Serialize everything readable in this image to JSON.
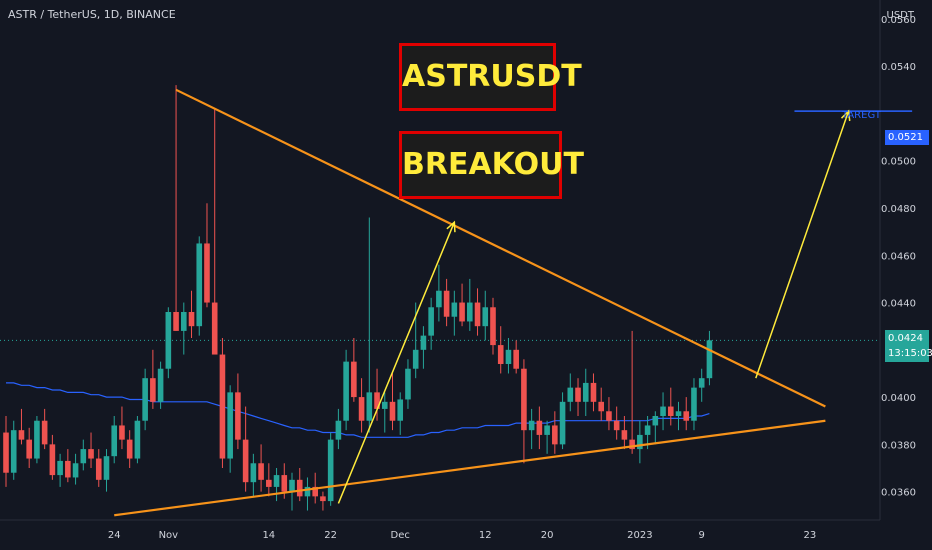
{
  "header": {
    "symbol": "ASTR / TetherUS, 1D, BINANCE"
  },
  "banners": {
    "line1": "ASTRUSDT",
    "line2": "BREAKOUT"
  },
  "axis": {
    "unit": "USDT",
    "price_ticks": [
      "0.0560",
      "0.0540",
      "0.0500",
      "0.0480",
      "0.0460",
      "0.0440",
      "0.0400",
      "0.0380",
      "0.0360"
    ],
    "time_ticks": [
      "24",
      "Nov",
      "14",
      "22",
      "Dec",
      "12",
      "20",
      "2023",
      "9",
      "23"
    ]
  },
  "target": {
    "label": "TAREGT",
    "price": "0.0521"
  },
  "current": {
    "price": "0.0424",
    "countdown": "13:15:03"
  },
  "colors": {
    "up": "#26a69a",
    "down": "#ef5350",
    "trendline": "#f7931a",
    "arrow": "#ffeb3b",
    "ma": "#2962ff",
    "bg": "#131722"
  },
  "chart_data": {
    "type": "candlestick",
    "ylim": [
      0.0348,
      0.0568
    ],
    "x_ticks": [
      {
        "label": "24",
        "index": 14
      },
      {
        "label": "Nov",
        "index": 21
      },
      {
        "label": "14",
        "index": 34
      },
      {
        "label": "22",
        "index": 42
      },
      {
        "label": "Dec",
        "index": 51
      },
      {
        "label": "12",
        "index": 62
      },
      {
        "label": "20",
        "index": 70
      },
      {
        "label": "2023",
        "index": 82
      },
      {
        "label": "9",
        "index": 90
      },
      {
        "label": "23",
        "index": 104
      }
    ],
    "candles": [
      [
        0.0385,
        0.0392,
        0.0362,
        0.0368
      ],
      [
        0.0368,
        0.039,
        0.0365,
        0.0386
      ],
      [
        0.0386,
        0.0395,
        0.038,
        0.0382
      ],
      [
        0.0382,
        0.0387,
        0.037,
        0.0374
      ],
      [
        0.0374,
        0.0392,
        0.0372,
        0.039
      ],
      [
        0.039,
        0.0395,
        0.0378,
        0.038
      ],
      [
        0.038,
        0.0384,
        0.0365,
        0.0367
      ],
      [
        0.0367,
        0.0376,
        0.0362,
        0.0373
      ],
      [
        0.0373,
        0.0378,
        0.0364,
        0.0366
      ],
      [
        0.0366,
        0.0376,
        0.0363,
        0.0372
      ],
      [
        0.0372,
        0.0382,
        0.0369,
        0.0378
      ],
      [
        0.0378,
        0.0385,
        0.037,
        0.0374
      ],
      [
        0.0374,
        0.0378,
        0.0362,
        0.0365
      ],
      [
        0.0365,
        0.0378,
        0.036,
        0.0375
      ],
      [
        0.0375,
        0.0392,
        0.0372,
        0.0388
      ],
      [
        0.0388,
        0.0396,
        0.0378,
        0.0382
      ],
      [
        0.0382,
        0.0386,
        0.037,
        0.0374
      ],
      [
        0.0374,
        0.0392,
        0.0372,
        0.039
      ],
      [
        0.039,
        0.0412,
        0.0386,
        0.0408
      ],
      [
        0.0408,
        0.042,
        0.0395,
        0.0398
      ],
      [
        0.0398,
        0.0415,
        0.0395,
        0.0412
      ],
      [
        0.0412,
        0.0438,
        0.0408,
        0.0436
      ],
      [
        0.0436,
        0.0532,
        0.0428,
        0.0428
      ],
      [
        0.0428,
        0.044,
        0.0418,
        0.0436
      ],
      [
        0.0436,
        0.0445,
        0.0425,
        0.043
      ],
      [
        0.043,
        0.0468,
        0.0426,
        0.0465
      ],
      [
        0.0465,
        0.0482,
        0.0438,
        0.044
      ],
      [
        0.044,
        0.0522,
        0.0418,
        0.0418
      ],
      [
        0.0418,
        0.0425,
        0.037,
        0.0374
      ],
      [
        0.0374,
        0.0405,
        0.0368,
        0.0402
      ],
      [
        0.0402,
        0.041,
        0.0378,
        0.0382
      ],
      [
        0.0382,
        0.0396,
        0.036,
        0.0364
      ],
      [
        0.0364,
        0.0376,
        0.0358,
        0.0372
      ],
      [
        0.0372,
        0.038,
        0.036,
        0.0365
      ],
      [
        0.0365,
        0.0372,
        0.0358,
        0.0362
      ],
      [
        0.0362,
        0.037,
        0.0356,
        0.0367
      ],
      [
        0.0367,
        0.0372,
        0.0357,
        0.036
      ],
      [
        0.036,
        0.0368,
        0.0352,
        0.0365
      ],
      [
        0.0365,
        0.037,
        0.0356,
        0.0358
      ],
      [
        0.0358,
        0.0366,
        0.0352,
        0.0362
      ],
      [
        0.0362,
        0.0368,
        0.0355,
        0.0358
      ],
      [
        0.0358,
        0.036,
        0.0352,
        0.0356
      ],
      [
        0.0356,
        0.0385,
        0.0354,
        0.0382
      ],
      [
        0.0382,
        0.0395,
        0.0378,
        0.039
      ],
      [
        0.039,
        0.042,
        0.0386,
        0.0415
      ],
      [
        0.0415,
        0.0425,
        0.0398,
        0.04
      ],
      [
        0.04,
        0.0408,
        0.0385,
        0.039
      ],
      [
        0.039,
        0.0476,
        0.0385,
        0.0402
      ],
      [
        0.0402,
        0.0412,
        0.039,
        0.0395
      ],
      [
        0.0395,
        0.0402,
        0.0385,
        0.0398
      ],
      [
        0.0398,
        0.041,
        0.0386,
        0.039
      ],
      [
        0.039,
        0.0402,
        0.0384,
        0.0399
      ],
      [
        0.0399,
        0.0416,
        0.0395,
        0.0412
      ],
      [
        0.0412,
        0.044,
        0.0408,
        0.042
      ],
      [
        0.042,
        0.043,
        0.0412,
        0.0426
      ],
      [
        0.0426,
        0.0442,
        0.042,
        0.0438
      ],
      [
        0.0438,
        0.0456,
        0.0432,
        0.0445
      ],
      [
        0.0445,
        0.045,
        0.043,
        0.0434
      ],
      [
        0.0434,
        0.0445,
        0.0426,
        0.044
      ],
      [
        0.044,
        0.0448,
        0.043,
        0.0432
      ],
      [
        0.0432,
        0.045,
        0.0428,
        0.044
      ],
      [
        0.044,
        0.0446,
        0.0426,
        0.043
      ],
      [
        0.043,
        0.0445,
        0.0424,
        0.0438
      ],
      [
        0.0438,
        0.0442,
        0.0418,
        0.0422
      ],
      [
        0.0422,
        0.043,
        0.041,
        0.0414
      ],
      [
        0.0414,
        0.0425,
        0.041,
        0.042
      ],
      [
        0.042,
        0.0424,
        0.041,
        0.0412
      ],
      [
        0.0412,
        0.0416,
        0.0372,
        0.0386
      ],
      [
        0.0386,
        0.0395,
        0.0378,
        0.039
      ],
      [
        0.039,
        0.0396,
        0.0378,
        0.0384
      ],
      [
        0.0384,
        0.039,
        0.0376,
        0.0388
      ],
      [
        0.0388,
        0.0394,
        0.0376,
        0.038
      ],
      [
        0.038,
        0.0402,
        0.0378,
        0.0398
      ],
      [
        0.0398,
        0.041,
        0.0394,
        0.0404
      ],
      [
        0.0404,
        0.0408,
        0.0392,
        0.0398
      ],
      [
        0.0398,
        0.0412,
        0.0392,
        0.0406
      ],
      [
        0.0406,
        0.041,
        0.0394,
        0.0398
      ],
      [
        0.0398,
        0.0404,
        0.039,
        0.0394
      ],
      [
        0.0394,
        0.04,
        0.0386,
        0.039
      ],
      [
        0.039,
        0.0396,
        0.0382,
        0.0386
      ],
      [
        0.0386,
        0.0392,
        0.0378,
        0.0382
      ],
      [
        0.0382,
        0.0428,
        0.0376,
        0.0378
      ],
      [
        0.0378,
        0.039,
        0.0372,
        0.0384
      ],
      [
        0.0384,
        0.0392,
        0.0378,
        0.0388
      ],
      [
        0.0388,
        0.0394,
        0.038,
        0.0392
      ],
      [
        0.0392,
        0.0402,
        0.0386,
        0.0396
      ],
      [
        0.0396,
        0.0404,
        0.0388,
        0.0392
      ],
      [
        0.0392,
        0.0398,
        0.0386,
        0.0394
      ],
      [
        0.0394,
        0.04,
        0.0386,
        0.039
      ],
      [
        0.039,
        0.0408,
        0.0386,
        0.0404
      ],
      [
        0.0404,
        0.0412,
        0.0398,
        0.0408
      ],
      [
        0.0408,
        0.0428,
        0.0405,
        0.0424
      ]
    ],
    "moving_average": {
      "start_index": 0,
      "values": [
        0.0406,
        0.0406,
        0.0405,
        0.0405,
        0.0404,
        0.0404,
        0.0403,
        0.0403,
        0.0402,
        0.0402,
        0.0402,
        0.0401,
        0.0401,
        0.04,
        0.04,
        0.04,
        0.0399,
        0.0399,
        0.0399,
        0.0398,
        0.0398,
        0.0398,
        0.0398,
        0.0398,
        0.0398,
        0.0398,
        0.0398,
        0.0397,
        0.0396,
        0.0395,
        0.0394,
        0.0393,
        0.0392,
        0.0391,
        0.039,
        0.0389,
        0.0388,
        0.0387,
        0.0387,
        0.0386,
        0.0386,
        0.0385,
        0.0385,
        0.0385,
        0.0384,
        0.0384,
        0.0383,
        0.0383,
        0.0383,
        0.0383,
        0.0383,
        0.0383,
        0.0383,
        0.0384,
        0.0384,
        0.0385,
        0.0385,
        0.0386,
        0.0386,
        0.0387,
        0.0387,
        0.0387,
        0.0388,
        0.0388,
        0.0388,
        0.0388,
        0.0389,
        0.0389,
        0.0389,
        0.0389,
        0.0389,
        0.039,
        0.039,
        0.039,
        0.039,
        0.039,
        0.039,
        0.039,
        0.039,
        0.039,
        0.039,
        0.039,
        0.039,
        0.039,
        0.0391,
        0.0391,
        0.0391,
        0.0391,
        0.0391,
        0.0392,
        0.0392,
        0.0393
      ]
    },
    "trendlines": [
      {
        "name": "resistance",
        "points": [
          [
            22,
            0.053
          ],
          [
            106,
            0.0396
          ]
        ]
      },
      {
        "name": "support",
        "points": [
          [
            14,
            0.035
          ],
          [
            106,
            0.039
          ]
        ]
      }
    ],
    "arrows": [
      {
        "from": [
          43,
          0.0355
        ],
        "to": [
          58,
          0.0474
        ]
      },
      {
        "from": [
          97,
          0.0408
        ],
        "to": [
          109,
          0.0521
        ]
      }
    ],
    "target_line": {
      "x_start": 102,
      "x_end": 118,
      "value": 0.0521
    },
    "current_price": 0.0424
  }
}
